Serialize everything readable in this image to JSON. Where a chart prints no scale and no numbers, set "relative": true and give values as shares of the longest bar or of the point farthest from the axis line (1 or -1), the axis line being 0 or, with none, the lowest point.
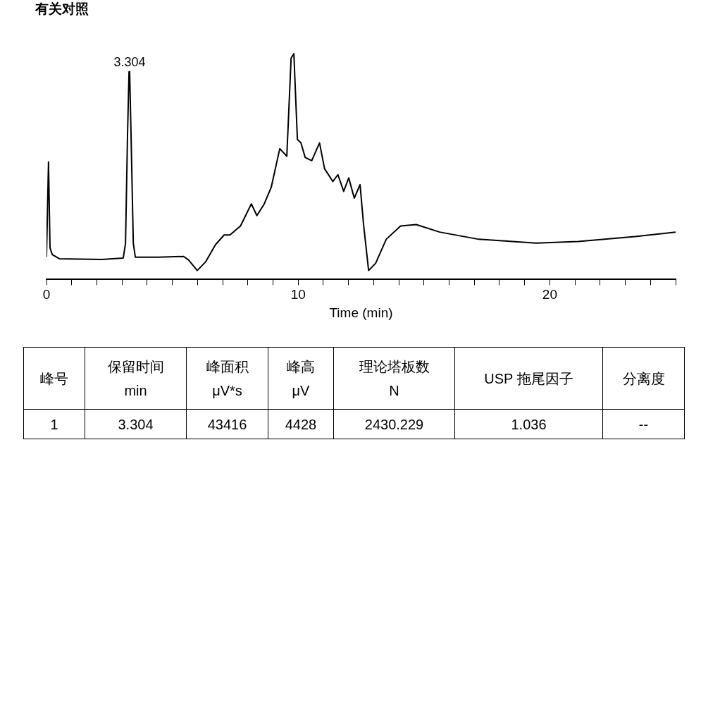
{
  "chart_data": [
    {
      "type": "line",
      "title": "有关对照",
      "xlabel": "Time (min)",
      "relative": true,
      "color": "#000000",
      "marker": "none",
      "x": [
        0,
        0.08,
        0.14,
        0.23,
        0.51,
        2.2,
        3.05,
        3.14,
        3.22,
        3.28,
        3.304,
        3.36,
        3.45,
        3.53,
        4.46,
        5.45,
        5.65,
        5.99,
        6.33,
        6.72,
        7.06,
        7.29,
        7.71,
        8.14,
        8.36,
        8.64,
        8.93,
        9.27,
        9.55,
        9.72,
        9.83,
        9.97,
        10.11,
        10.28,
        10.54,
        10.85,
        11.05,
        11.38,
        11.58,
        11.81,
        12.01,
        12.23,
        12.46,
        12.6,
        12.8,
        13.08,
        13.5,
        14.07,
        14.69,
        15.62,
        17.18,
        19.44,
        21.13,
        23.39,
        25.0
      ],
      "values": [
        0.1,
        0.52,
        0.14,
        0.11,
        0.092,
        0.089,
        0.095,
        0.16,
        0.64,
        0.92,
        0.92,
        0.64,
        0.16,
        0.099,
        0.099,
        0.102,
        0.086,
        0.04,
        0.079,
        0.155,
        0.197,
        0.197,
        0.237,
        0.335,
        0.283,
        0.332,
        0.408,
        0.579,
        0.546,
        0.98,
        1.0,
        0.62,
        0.605,
        0.54,
        0.526,
        0.605,
        0.49,
        0.434,
        0.464,
        0.39,
        0.45,
        0.36,
        0.42,
        0.243,
        0.04,
        0.072,
        0.178,
        0.237,
        0.243,
        0.21,
        0.178,
        0.161,
        0.168,
        0.19,
        0.21
      ],
      "xlim": [
        0,
        25
      ],
      "xticks": [
        0,
        {
          "value": 1,
          "label": null
        },
        {
          "value": 2,
          "label": null
        },
        {
          "value": 3,
          "label": null
        },
        {
          "value": 4,
          "label": null
        },
        {
          "value": 5,
          "label": null
        },
        {
          "value": 6,
          "label": null
        },
        {
          "value": 7,
          "label": null
        },
        {
          "value": 8,
          "label": null
        },
        {
          "value": 9,
          "label": null
        },
        10,
        {
          "value": 11,
          "label": null
        },
        {
          "value": 12,
          "label": null
        },
        {
          "value": 13,
          "label": null
        },
        {
          "value": 14,
          "label": null
        },
        {
          "value": 15,
          "label": null
        },
        {
          "value": 16,
          "label": null
        },
        {
          "value": 17,
          "label": null
        },
        {
          "value": 18,
          "label": null
        },
        {
          "value": 19,
          "label": null
        },
        20,
        {
          "value": 21,
          "label": null
        },
        {
          "value": 22,
          "label": null
        },
        {
          "value": 23,
          "label": null
        },
        {
          "value": 24,
          "label": null
        },
        {
          "value": 25,
          "label": null
        }
      ],
      "annotations": [
        {
          "text": "3.304",
          "x": 3.304,
          "y": 0.92
        }
      ]
    },
    {
      "type": "other",
      "categories": [
        "峰号",
        "保留时间\nmin",
        "峰面积\nμV*s",
        "峰高\nμV",
        "理论塔板数\nN",
        "USP 拖尾因子",
        "分离度"
      ],
      "annotations": [
        "1",
        "3.304",
        "43416",
        "4428",
        "2430.229",
        "1.036",
        "--"
      ]
    }
  ]
}
